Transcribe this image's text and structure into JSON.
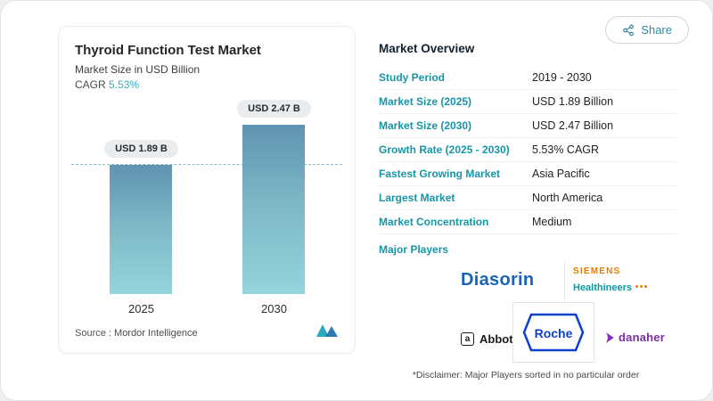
{
  "colors": {
    "accent_teal": "#1696a6",
    "cagr_teal": "#35aebc",
    "bar_gradient_top": "#6093b2",
    "bar_gradient_bottom": "#95d5db",
    "dashed_line": "#8fb9c9",
    "diasorin_blue": "#1a63b5",
    "siemens_orange": "#eb7a00",
    "siemens_teal": "#0a9a9f",
    "roche_blue": "#0b41cd",
    "danaher_purple": "#7a2ea0"
  },
  "left_card": {
    "title": "Thyroid Function Test Market",
    "subtitle": "Market Size in USD Billion",
    "cagr_label": "CAGR",
    "cagr_value": "5.53%",
    "source_prefix": "Source :",
    "source_name": "Mordor Intelligence"
  },
  "chart_data": {
    "type": "bar",
    "categories": [
      "2025",
      "2030"
    ],
    "values": [
      1.89,
      2.47
    ],
    "value_labels": [
      "USD 1.89 B",
      "USD 2.47 B"
    ],
    "title": "Thyroid Function Test Market",
    "xlabel": "",
    "ylabel": "Market Size in USD Billion",
    "ylim": [
      0,
      2.6
    ],
    "reference_line": 1.89,
    "grid": false,
    "legend": "none"
  },
  "share_button": {
    "label": "Share"
  },
  "overview": {
    "heading": "Market Overview",
    "rows": [
      {
        "label": "Study Period",
        "value": "2019 - 2030"
      },
      {
        "label": "Market Size (2025)",
        "value": "USD 1.89 Billion"
      },
      {
        "label": "Market Size (2030)",
        "value": "USD 2.47 Billion"
      },
      {
        "label": "Growth Rate (2025 - 2030)",
        "value": "5.53% CAGR"
      },
      {
        "label": "Fastest Growing Market",
        "value": "Asia Pacific"
      },
      {
        "label": "Largest Market",
        "value": "North America"
      },
      {
        "label": "Market Concentration",
        "value": "Medium"
      }
    ],
    "major_players_label": "Major Players",
    "players": {
      "diasorin": "Diasorin",
      "siemens_line1": "SIEMENS",
      "siemens_line2": "Healthineers",
      "abbott_mark": "a",
      "abbott": "Abbott",
      "roche": "Roche",
      "danaher": "danaher"
    },
    "disclaimer": "*Disclaimer: Major Players sorted in no particular order"
  }
}
